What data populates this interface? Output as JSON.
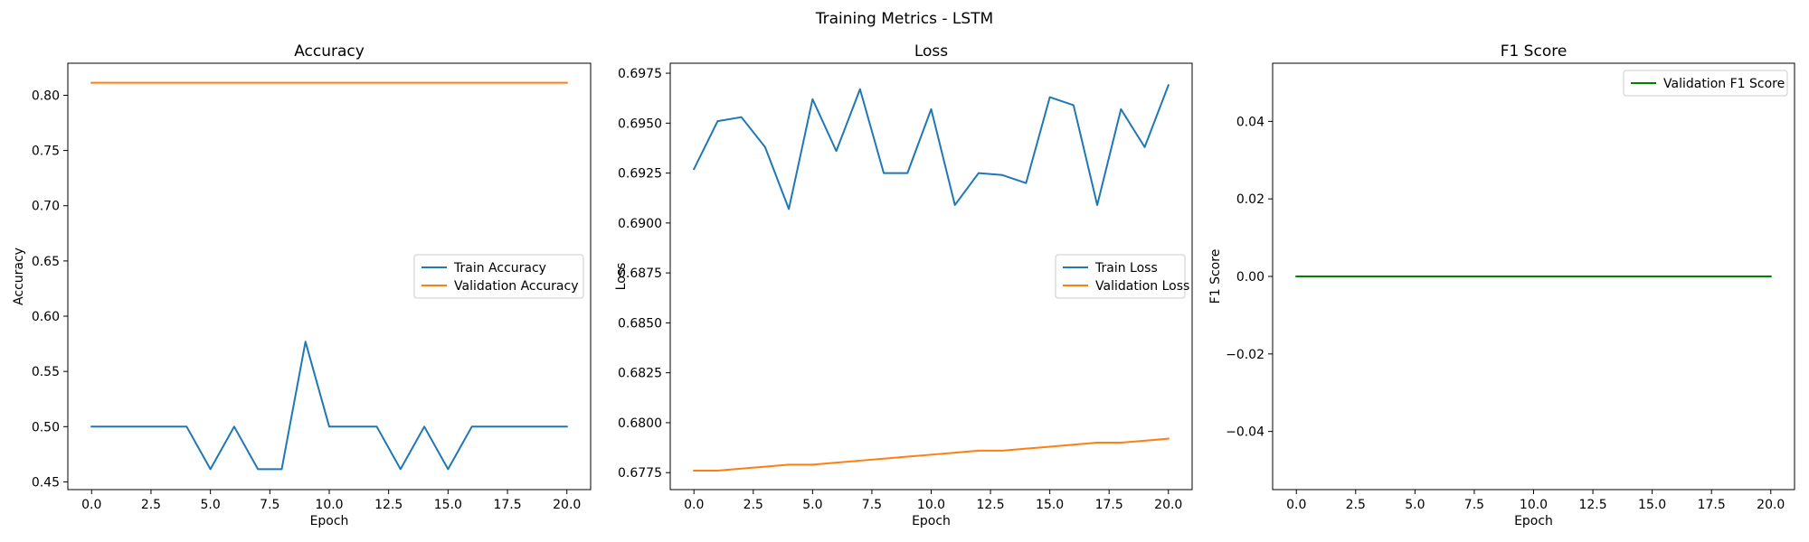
{
  "suptitle": "Training Metrics - LSTM",
  "chart_data": [
    {
      "type": "line",
      "title": "Accuracy",
      "xlabel": "Epoch",
      "ylabel": "Accuracy",
      "xlim": [
        -1,
        21
      ],
      "ylim": [
        0.443,
        0.829
      ],
      "xticks": [
        0,
        2.5,
        5,
        7.5,
        10,
        12.5,
        15,
        17.5,
        20
      ],
      "xtick_labels": [
        "0.0",
        "2.5",
        "5.0",
        "7.5",
        "10.0",
        "12.5",
        "15.0",
        "17.5",
        "20.0"
      ],
      "yticks": [
        0.45,
        0.5,
        0.55,
        0.6,
        0.65,
        0.7,
        0.75,
        0.8
      ],
      "ytick_labels": [
        "0.45",
        "0.50",
        "0.55",
        "0.60",
        "0.65",
        "0.70",
        "0.75",
        "0.80"
      ],
      "legend": "center-right",
      "x": [
        0,
        1,
        2,
        3,
        4,
        5,
        6,
        7,
        8,
        9,
        10,
        11,
        12,
        13,
        14,
        15,
        16,
        17,
        18,
        19,
        20
      ],
      "series": [
        {
          "name": "Train Accuracy",
          "color": "#1f77b4",
          "values": [
            0.5,
            0.5,
            0.5,
            0.5,
            0.5,
            0.4615,
            0.5,
            0.4615,
            0.4615,
            0.5769,
            0.5,
            0.5,
            0.5,
            0.4615,
            0.5,
            0.4615,
            0.5,
            0.5,
            0.5,
            0.5,
            0.5
          ]
        },
        {
          "name": "Validation Accuracy",
          "color": "#ff7f0e",
          "values": [
            0.8113,
            0.8113,
            0.8113,
            0.8113,
            0.8113,
            0.8113,
            0.8113,
            0.8113,
            0.8113,
            0.8113,
            0.8113,
            0.8113,
            0.8113,
            0.8113,
            0.8113,
            0.8113,
            0.8113,
            0.8113,
            0.8113,
            0.8113,
            0.8113
          ]
        }
      ]
    },
    {
      "type": "line",
      "title": "Loss",
      "xlabel": "Epoch",
      "ylabel": "Loss",
      "xlim": [
        -1,
        21
      ],
      "ylim": [
        0.67665,
        0.698
      ],
      "xticks": [
        0,
        2.5,
        5,
        7.5,
        10,
        12.5,
        15,
        17.5,
        20
      ],
      "xtick_labels": [
        "0.0",
        "2.5",
        "5.0",
        "7.5",
        "10.0",
        "12.5",
        "15.0",
        "17.5",
        "20.0"
      ],
      "yticks": [
        0.6775,
        0.68,
        0.6825,
        0.685,
        0.6875,
        0.69,
        0.6925,
        0.695,
        0.6975
      ],
      "ytick_labels": [
        "0.6775",
        "0.6800",
        "0.6825",
        "0.6850",
        "0.6875",
        "0.6900",
        "0.6925",
        "0.6950",
        "0.6975"
      ],
      "legend": "center-right",
      "x": [
        0,
        1,
        2,
        3,
        4,
        5,
        6,
        7,
        8,
        9,
        10,
        11,
        12,
        13,
        14,
        15,
        16,
        17,
        18,
        19,
        20
      ],
      "series": [
        {
          "name": "Train Loss",
          "color": "#1f77b4",
          "values": [
            0.6927,
            0.6951,
            0.6953,
            0.6938,
            0.6907,
            0.6962,
            0.6936,
            0.6967,
            0.6925,
            0.6925,
            0.6957,
            0.6909,
            0.6925,
            0.6924,
            0.692,
            0.6963,
            0.6959,
            0.6909,
            0.6957,
            0.6938,
            0.6969
          ]
        },
        {
          "name": "Validation Loss",
          "color": "#ff7f0e",
          "values": [
            0.6776,
            0.6776,
            0.6777,
            0.6778,
            0.6779,
            0.6779,
            0.678,
            0.6781,
            0.6782,
            0.6783,
            0.6784,
            0.6785,
            0.6786,
            0.6786,
            0.6787,
            0.6788,
            0.6789,
            0.679,
            0.679,
            0.6791,
            0.6792
          ]
        }
      ]
    },
    {
      "type": "line",
      "title": "F1 Score",
      "xlabel": "Epoch",
      "ylabel": "F1 Score",
      "xlim": [
        -1,
        21
      ],
      "ylim": [
        -0.055,
        0.055
      ],
      "xticks": [
        0,
        2.5,
        5,
        7.5,
        10,
        12.5,
        15,
        17.5,
        20
      ],
      "xtick_labels": [
        "0.0",
        "2.5",
        "5.0",
        "7.5",
        "10.0",
        "12.5",
        "15.0",
        "17.5",
        "20.0"
      ],
      "yticks": [
        -0.04,
        -0.02,
        0,
        0.02,
        0.04
      ],
      "ytick_labels": [
        "−0.04",
        "−0.02",
        "0.00",
        "0.02",
        "0.04"
      ],
      "legend": "top-right",
      "x": [
        0,
        1,
        2,
        3,
        4,
        5,
        6,
        7,
        8,
        9,
        10,
        11,
        12,
        13,
        14,
        15,
        16,
        17,
        18,
        19,
        20
      ],
      "series": [
        {
          "name": "Validation F1 Score",
          "color": "#008000",
          "values": [
            0,
            0,
            0,
            0,
            0,
            0,
            0,
            0,
            0,
            0,
            0,
            0,
            0,
            0,
            0,
            0,
            0,
            0,
            0,
            0,
            0
          ]
        }
      ]
    }
  ]
}
